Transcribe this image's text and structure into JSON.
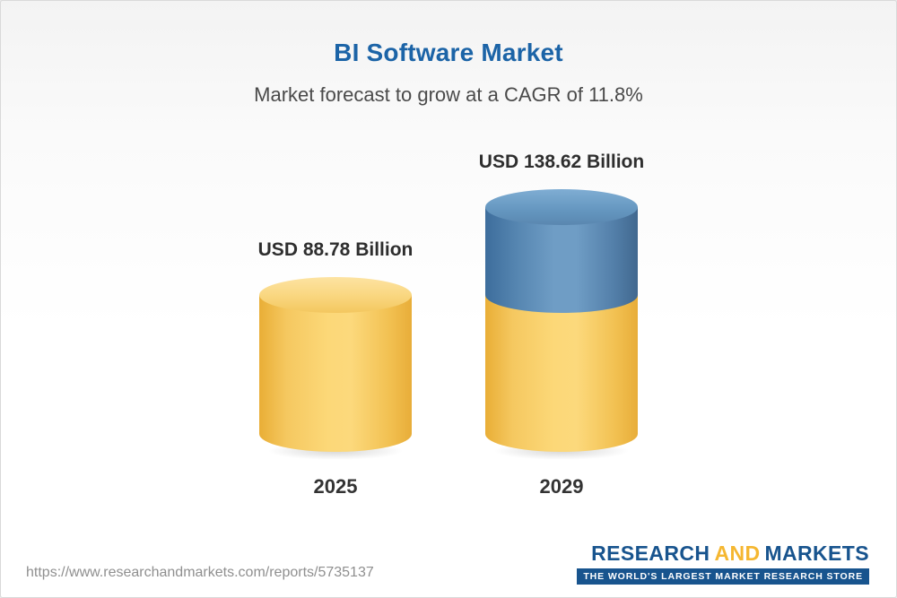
{
  "header": {
    "title": "BI Software Market",
    "subtitle": "Market forecast to grow at a CAGR of 11.8%"
  },
  "chart_data": {
    "type": "bar",
    "variant": "3d-cylinder-infographic",
    "title": "BI Software Market",
    "subtitle": "Market forecast to grow at a CAGR of 11.8%",
    "cagr": "11.8%",
    "unit": "USD Billion",
    "categories": [
      "2025",
      "2029"
    ],
    "values": [
      88.78,
      138.62
    ],
    "value_labels": [
      "USD 88.78 Billion",
      "USD 138.62 Billion"
    ],
    "stacked_segments_2029": {
      "base": 88.78,
      "growth": 49.84
    },
    "colors": {
      "base_gold": "#f2c159",
      "growth_blue": "#5d8cb5"
    },
    "ylim": [
      0,
      150
    ],
    "grid": false,
    "legend": "none"
  },
  "footer": {
    "source_url": "https://www.researchandmarkets.com/reports/5735137",
    "logo": {
      "part1": "RESEARCH",
      "part2": "AND",
      "part3": "MARKETS",
      "tagline": "THE WORLD'S LARGEST MARKET RESEARCH STORE"
    }
  }
}
